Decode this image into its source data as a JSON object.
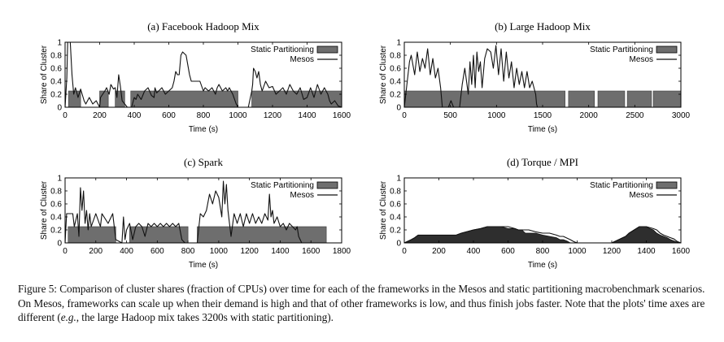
{
  "figure": {
    "caption": {
      "label": "Figure 5:",
      "text_before_italic": "Comparison of cluster shares (fraction of CPUs) over time for each of the frameworks in the Mesos and static partitioning macrobenchmark scenarios. On Mesos, frameworks can scale up when their demand is high and that of other frameworks is low, and thus finish jobs faster. Note that the plots' time axes are different (",
      "italic": "e.g.",
      "text_after_italic": ", the large Hadoop mix takes 3200s with static partitioning)."
    },
    "colors": {
      "static": "#6e6e6e",
      "mesos": "#111111",
      "frame": "#000000"
    }
  },
  "chart_data": [
    {
      "type": "area",
      "title": "(a) Facebook Hadoop Mix",
      "xlabel": "Time (s)",
      "ylabel": "Share of Cluster",
      "xlim": [
        0,
        1600
      ],
      "ylim": [
        0,
        1
      ],
      "xticks": [
        "0",
        "200",
        "400",
        "600",
        "800",
        "1000",
        "1200",
        "1400",
        "1600"
      ],
      "yticks": [
        "0",
        "0.2",
        "0.4",
        "0.6",
        "0.8",
        "1"
      ],
      "legend": [
        "Static Partitioning",
        "Mesos"
      ],
      "legend_position": "top-right",
      "series": [
        {
          "name": "Static Partitioning",
          "kind": "bars",
          "x": [
            [
              20,
              90
            ],
            [
              200,
              250
            ],
            [
              290,
              345
            ],
            [
              380,
              1000
            ],
            [
              1080,
              1600
            ]
          ],
          "y": 0.25
        },
        {
          "name": "Mesos",
          "kind": "line",
          "x": [
            0,
            10,
            15,
            30,
            40,
            50,
            60,
            75,
            90,
            110,
            120,
            140,
            160,
            180,
            190,
            200,
            205,
            230,
            240,
            255,
            265,
            280,
            290,
            300,
            310,
            320,
            330,
            345,
            360,
            370,
            385,
            390,
            400,
            410,
            420,
            440,
            460,
            480,
            500,
            515,
            520,
            530,
            560,
            580,
            600,
            620,
            630,
            640,
            650,
            660,
            670,
            680,
            700,
            720,
            730,
            760,
            780,
            800,
            810,
            830,
            850,
            870,
            880,
            890,
            910,
            930,
            940,
            950,
            970,
            990,
            1000,
            1010,
            1060,
            1080,
            1085,
            1090,
            1100,
            1110,
            1120,
            1130,
            1140,
            1160,
            1180,
            1200,
            1220,
            1240,
            1260,
            1280,
            1300,
            1320,
            1340,
            1360,
            1380,
            1400,
            1420,
            1440,
            1460,
            1480,
            1500,
            1510,
            1520,
            1530,
            1540,
            1560,
            1580,
            1600
          ],
          "y": [
            0,
            0.45,
            1.0,
            1.0,
            0.5,
            0.2,
            0.3,
            0.15,
            0.28,
            0.1,
            0.05,
            0.15,
            0.05,
            0.1,
            0.05,
            0,
            0.15,
            0.25,
            0.3,
            0.2,
            0.35,
            0.28,
            0.3,
            0.15,
            0.5,
            0.32,
            0.1,
            0.05,
            0,
            0,
            0,
            0.05,
            0.15,
            0.12,
            0.2,
            0.12,
            0.25,
            0.3,
            0.18,
            0.15,
            0.3,
            0.22,
            0.3,
            0.2,
            0.25,
            0.3,
            0.4,
            0.55,
            0.5,
            0.5,
            0.8,
            0.85,
            0.8,
            0.5,
            0.4,
            0.4,
            0.4,
            0.25,
            0.3,
            0.25,
            0.3,
            0.2,
            0.3,
            0.35,
            0.25,
            0.3,
            0.25,
            0.3,
            0.2,
            0.05,
            0,
            0,
            0,
            0.25,
            0.35,
            0.6,
            0.55,
            0.45,
            0.55,
            0.35,
            0.25,
            0.4,
            0.3,
            0.32,
            0.2,
            0.25,
            0.3,
            0.2,
            0.35,
            0.25,
            0.2,
            0.3,
            0.12,
            0.15,
            0.3,
            0.15,
            0.35,
            0.2,
            0.3,
            0.25,
            0.2,
            0.1,
            0.05,
            0.1,
            0.02,
            0
          ]
        }
      ]
    },
    {
      "type": "area",
      "title": "(b) Large Hadoop Mix",
      "xlabel": "Time (s)",
      "ylabel": "Share of Cluster",
      "xlim": [
        0,
        3200
      ],
      "ylim": [
        0,
        1
      ],
      "xticks": [
        "0",
        "500",
        "1000",
        "1500",
        "2000",
        "2500",
        "3000"
      ],
      "yticks": [
        "0",
        "0.2",
        "0.4",
        "0.6",
        "0.8",
        "1"
      ],
      "legend": [
        "Static Partitioning",
        "Mesos"
      ],
      "legend_position": "top-right",
      "series": [
        {
          "name": "Static Partitioning",
          "kind": "bars",
          "x": [
            [
              0,
              1860
            ],
            [
              1900,
              2200
            ],
            [
              2240,
              2550
            ],
            [
              2580,
              2860
            ],
            [
              2880,
              3200
            ]
          ],
          "y": 0.25
        },
        {
          "name": "Mesos",
          "kind": "line",
          "x": [
            0,
            60,
            80,
            120,
            150,
            180,
            210,
            240,
            270,
            300,
            330,
            360,
            390,
            420,
            440,
            480,
            510,
            540,
            570,
            600,
            640,
            670,
            700,
            740,
            760,
            780,
            800,
            820,
            840,
            860,
            880,
            900,
            930,
            960,
            1000,
            1030,
            1060,
            1090,
            1120,
            1150,
            1180,
            1210,
            1240,
            1270,
            1300,
            1330,
            1360,
            1390,
            1420,
            1450,
            1480,
            1520,
            1530,
            1540,
            3200
          ],
          "y": [
            0,
            0.7,
            0.8,
            0.5,
            0.85,
            0.55,
            0.75,
            0.6,
            0.9,
            0.5,
            0.75,
            0.45,
            0.6,
            0.3,
            0,
            0,
            0,
            0.1,
            0,
            0,
            0,
            0.35,
            0.6,
            0.2,
            0.7,
            0.35,
            0.8,
            0.3,
            0.85,
            0.55,
            0.7,
            0.3,
            0.75,
            0.9,
            0.85,
            0.6,
            0.95,
            0.5,
            0.9,
            0.4,
            0.85,
            0.45,
            0.7,
            0.3,
            0.6,
            0.35,
            0.55,
            0.3,
            0.55,
            0.3,
            0.4,
            0.2,
            0.05,
            0,
            0
          ]
        }
      ]
    },
    {
      "type": "area",
      "title": "(c) Spark",
      "xlabel": "Time (s)",
      "ylabel": "Share of Cluster",
      "xlim": [
        0,
        1800
      ],
      "ylim": [
        0,
        1
      ],
      "xticks": [
        "0",
        "200",
        "400",
        "600",
        "800",
        "1000",
        "1200",
        "1400",
        "1600",
        "1800"
      ],
      "yticks": [
        "0",
        "0.2",
        "0.4",
        "0.6",
        "0.8",
        "1"
      ],
      "legend": [
        "Static Partitioning",
        "Mesos"
      ],
      "legend_position": "top-right",
      "series": [
        {
          "name": "Static Partitioning",
          "kind": "bars",
          "x": [
            [
              20,
              330
            ],
            [
              420,
              800
            ],
            [
              860,
              1700
            ]
          ],
          "y": 0.25
        },
        {
          "name": "Mesos",
          "kind": "line",
          "x": [
            0,
            10,
            50,
            60,
            80,
            90,
            100,
            110,
            120,
            130,
            140,
            150,
            160,
            170,
            200,
            230,
            240,
            280,
            310,
            330,
            370,
            380,
            390,
            400,
            420,
            440,
            460,
            480,
            500,
            520,
            540,
            560,
            580,
            600,
            620,
            640,
            660,
            680,
            700,
            720,
            740,
            760,
            780,
            800,
            820,
            840,
            860,
            880,
            900,
            920,
            940,
            960,
            980,
            1000,
            1020,
            1030,
            1040,
            1050,
            1060,
            1070,
            1080,
            1100,
            1120,
            1140,
            1160,
            1180,
            1200,
            1220,
            1240,
            1260,
            1280,
            1300,
            1320,
            1330,
            1340,
            1350,
            1360,
            1380,
            1400,
            1420,
            1440,
            1460,
            1480,
            1500,
            1510,
            1520,
            1530,
            1540,
            1800
          ],
          "y": [
            0,
            0.45,
            0.45,
            0.25,
            0.45,
            0.1,
            0.85,
            0.5,
            0.8,
            0.3,
            0.5,
            0.2,
            0.45,
            0.25,
            0.45,
            0.25,
            0.45,
            0.3,
            0.45,
            0.05,
            0,
            0.4,
            0.05,
            0.2,
            0.3,
            0.05,
            0.25,
            0.3,
            0.25,
            0.1,
            0.3,
            0.25,
            0.3,
            0.25,
            0.3,
            0.25,
            0.3,
            0.25,
            0.3,
            0.25,
            0.3,
            0.05,
            0,
            0,
            0,
            0,
            0,
            0.45,
            0.4,
            0.5,
            0.75,
            0.6,
            0.8,
            0.7,
            0.4,
            0.95,
            0.6,
            0.9,
            0.5,
            0.3,
            0.1,
            0.45,
            0.3,
            0.45,
            0.25,
            0.45,
            0.3,
            0.45,
            0.3,
            0.4,
            0.3,
            0.45,
            0.35,
            0.75,
            0.4,
            0.5,
            0.3,
            0.4,
            0.25,
            0.3,
            0.2,
            0.3,
            0.25,
            0.2,
            0.25,
            0.1,
            0.05,
            0,
            0
          ]
        }
      ]
    },
    {
      "type": "area",
      "title": "(d) Torque / MPI",
      "xlabel": "Time (s)",
      "ylabel": "Share of Cluster",
      "xlim": [
        0,
        1600
      ],
      "ylim": [
        0,
        1
      ],
      "xticks": [
        "0",
        "200",
        "400",
        "600",
        "800",
        "1000",
        "1200",
        "1400",
        "1600"
      ],
      "yticks": [
        "0",
        "0.2",
        "0.4",
        "0.6",
        "0.8",
        "1"
      ],
      "legend": [
        "Static Partitioning",
        "Mesos"
      ],
      "legend_position": "top-right",
      "series": [
        {
          "name": "Static Partitioning",
          "kind": "area",
          "x": [
            0,
            40,
            60,
            80,
            100,
            300,
            330,
            400,
            440,
            480,
            560,
            600,
            640,
            660,
            680,
            700,
            760,
            800,
            840,
            880,
            900,
            920,
            940,
            960,
            980,
            1000,
            1040,
            1200,
            1240,
            1280,
            1300,
            1360,
            1400,
            1420,
            1440,
            1460,
            1480,
            1500,
            1520,
            1540,
            1560,
            1580,
            1600
          ],
          "y": [
            0,
            0.05,
            0.08,
            0.12,
            0.12,
            0.12,
            0.15,
            0.2,
            0.22,
            0.25,
            0.25,
            0.22,
            0.22,
            0.2,
            0.2,
            0.15,
            0.15,
            0.12,
            0.1,
            0.08,
            0.05,
            0.05,
            0.03,
            0,
            0,
            0,
            0,
            0,
            0.05,
            0.1,
            0.15,
            0.25,
            0.25,
            0.22,
            0.2,
            0.15,
            0.12,
            0.1,
            0.08,
            0.05,
            0.03,
            0.01,
            0
          ]
        },
        {
          "name": "Mesos",
          "kind": "line",
          "x": [
            0,
            40,
            60,
            80,
            100,
            300,
            330,
            400,
            440,
            480,
            560,
            600,
            640,
            660,
            680,
            720,
            760,
            800,
            840,
            880,
            900,
            920,
            960,
            980,
            1000,
            1040,
            1200,
            1240,
            1280,
            1300,
            1360,
            1400,
            1440,
            1460,
            1480,
            1500,
            1520,
            1540,
            1560,
            1580,
            1600
          ],
          "y": [
            0,
            0.05,
            0.08,
            0.12,
            0.12,
            0.12,
            0.15,
            0.2,
            0.22,
            0.25,
            0.25,
            0.25,
            0.22,
            0.2,
            0.2,
            0.2,
            0.17,
            0.15,
            0.15,
            0.12,
            0.1,
            0.1,
            0.05,
            0.02,
            0,
            0,
            0,
            0.05,
            0.1,
            0.15,
            0.25,
            0.25,
            0.22,
            0.2,
            0.15,
            0.12,
            0.1,
            0.08,
            0.06,
            0.02,
            0
          ]
        }
      ]
    }
  ]
}
